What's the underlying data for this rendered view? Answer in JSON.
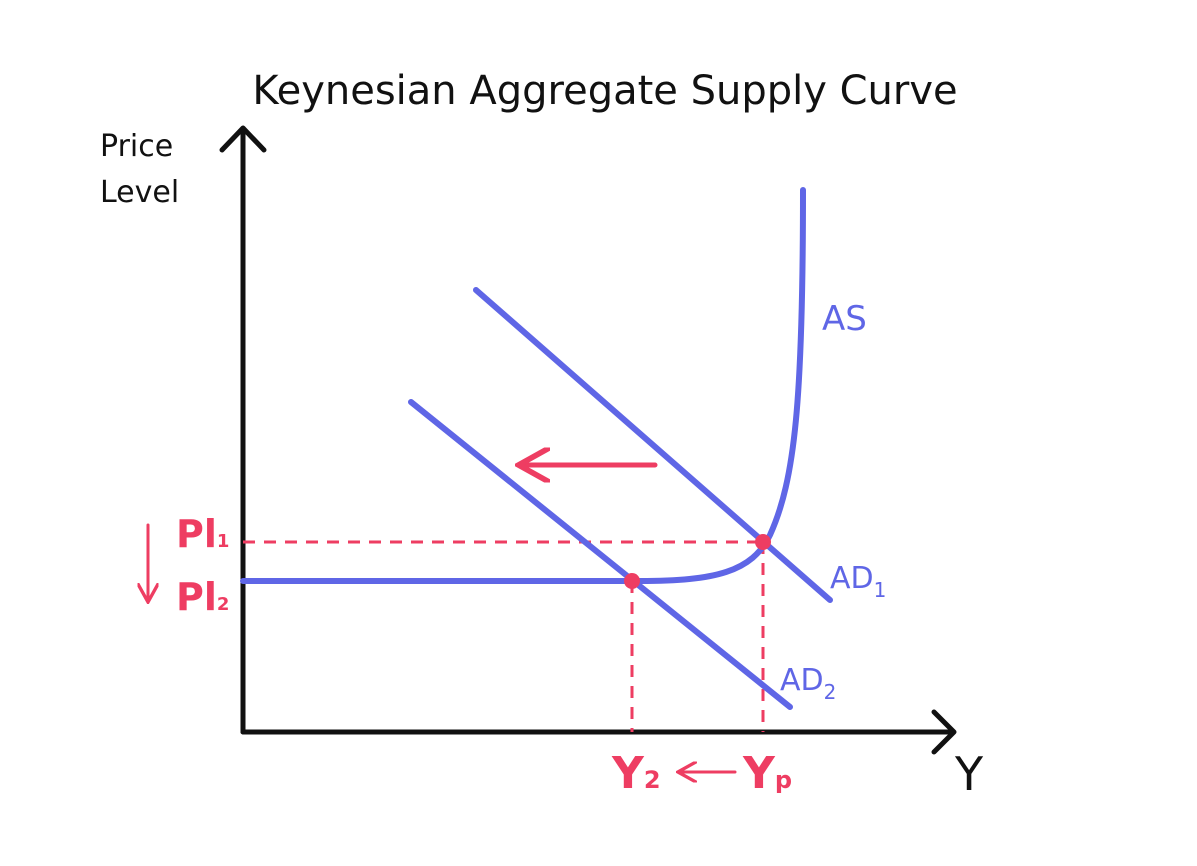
{
  "title": "Keynesian Aggregate Supply Curve",
  "y_axis_label": "Price Level",
  "x_axis_label": "Y",
  "curves": {
    "as": {
      "label": "AS"
    },
    "ad1": {
      "label": "AD",
      "sub": "1"
    },
    "ad2": {
      "label": "AD",
      "sub": "2"
    }
  },
  "price_levels": [
    {
      "label": "Pl",
      "sub": "1"
    },
    {
      "label": "Pl",
      "sub": "2"
    }
  ],
  "outputs": [
    {
      "label": "Y",
      "sub": "2"
    },
    {
      "label": "Y",
      "sub": "p"
    }
  ]
}
